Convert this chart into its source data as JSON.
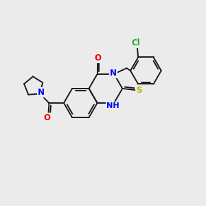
{
  "bg": "#ebebeb",
  "figsize": [
    3.0,
    3.0
  ],
  "dpi": 100,
  "bond_color": "#1a1a1a",
  "bond_lw": 1.4,
  "colors": {
    "C": "#1a1a1a",
    "N": "#0000ee",
    "O": "#ee0000",
    "S": "#bbbb00",
    "Cl": "#22aa22",
    "H": "#1a1a1a"
  },
  "fs": 8.5
}
